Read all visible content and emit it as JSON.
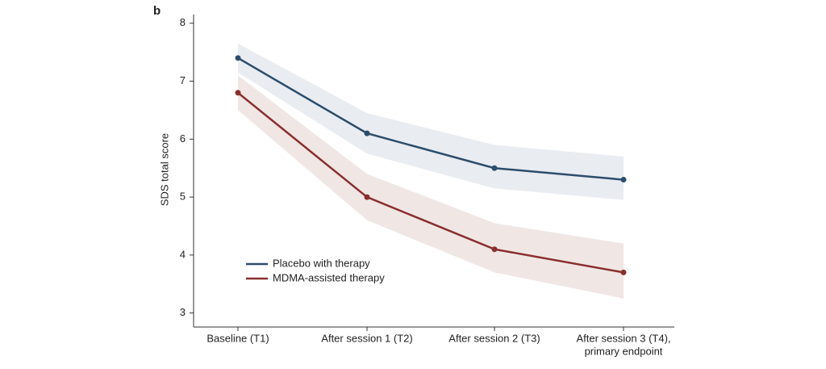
{
  "chart_data": {
    "type": "line",
    "panel_label": "b",
    "y_label": "SDS total score",
    "categories": [
      "Baseline (T1)",
      "After session 1 (T2)",
      "After session 2 (T3)",
      [
        "After session 3 (T4),",
        "primary endpoint"
      ]
    ],
    "ylim": [
      2.8,
      8.15
    ],
    "yticks": [
      3,
      4,
      5,
      6,
      7,
      8
    ],
    "legend": "lower-left",
    "series": [
      {
        "name": "Placebo with therapy",
        "color": "#2c4d6b",
        "band_color": "#e5e9ef",
        "values": [
          7.4,
          6.1,
          5.5,
          5.3
        ],
        "upper": [
          7.65,
          6.45,
          5.9,
          5.7
        ],
        "lower": [
          7.15,
          5.75,
          5.15,
          4.95
        ]
      },
      {
        "name": "MDMA-assisted therapy",
        "color": "#8a2f2f",
        "band_color": "#ede3e0",
        "values": [
          6.8,
          5.0,
          4.1,
          3.7
        ],
        "upper": [
          7.1,
          5.4,
          4.55,
          4.2
        ],
        "lower": [
          6.5,
          4.6,
          3.7,
          3.25
        ]
      }
    ]
  }
}
